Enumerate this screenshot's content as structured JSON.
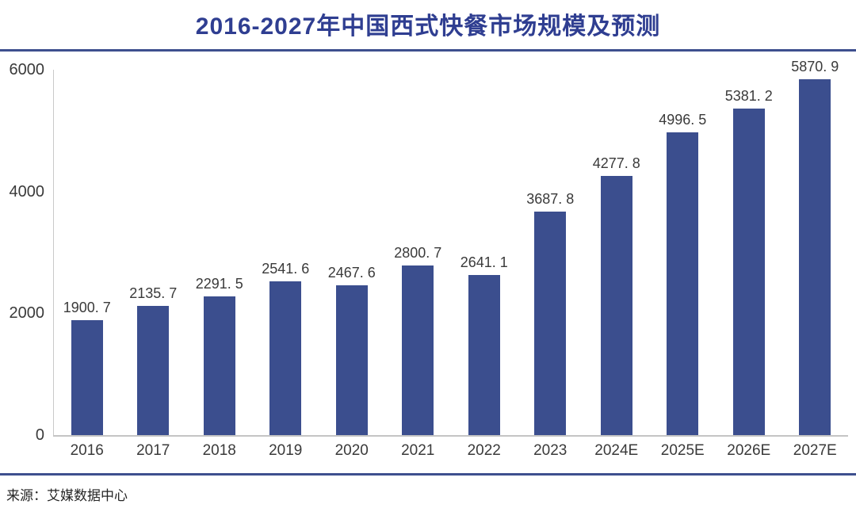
{
  "title": "2016-2027年中国西式快餐市场规模及预测",
  "source": "来源：艾媒数据中心",
  "colors": {
    "bar": "#3B4E8E",
    "title": "#2F3E91",
    "rule": "#3D4F8E",
    "axis_label": "#3a3a3a"
  },
  "chart_data": {
    "type": "bar",
    "title": "2016-2027年中国西式快餐市场规模及预测",
    "categories": [
      "2016",
      "2017",
      "2018",
      "2019",
      "2020",
      "2021",
      "2022",
      "2023",
      "2024E",
      "2025E",
      "2026E",
      "2027E"
    ],
    "values": [
      1900.7,
      2135.7,
      2291.5,
      2541.6,
      2467.6,
      2800.7,
      2641.1,
      3687.8,
      4277.8,
      4996.5,
      5381.2,
      5870.9
    ],
    "value_labels": [
      "1900. 7",
      "2135. 7",
      "2291. 5",
      "2541. 6",
      "2467. 6",
      "2800. 7",
      "2641. 1",
      "3687. 8",
      "4277. 8",
      "4996. 5",
      "5381. 2",
      "5870. 9"
    ],
    "xlabel": "",
    "ylabel": "",
    "ylim": [
      0,
      6000
    ],
    "yticks": [
      0,
      2000,
      4000,
      6000
    ],
    "ytick_labels": [
      "0",
      "2000",
      "4000",
      "6000"
    ],
    "grid": false,
    "legend": "none",
    "bar_color": "#3B4E8E"
  }
}
